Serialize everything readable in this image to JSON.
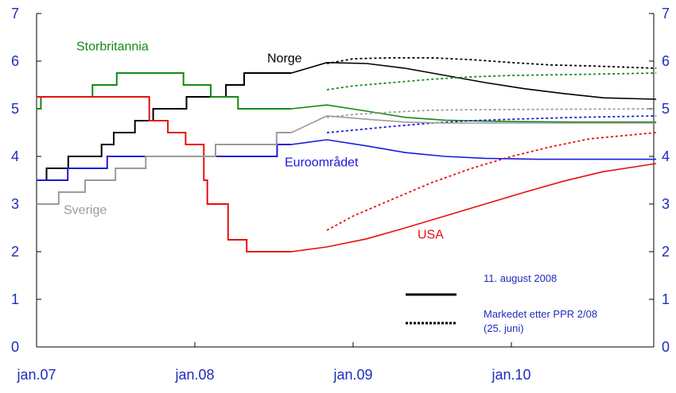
{
  "chart_data": {
    "type": "line",
    "x_ticks": [
      "jan.07",
      "jan.08",
      "jan.09",
      "jan.10"
    ],
    "ylim": [
      0,
      7
    ],
    "y_ticks": [
      "0",
      "1",
      "2",
      "3",
      "4",
      "5",
      "6",
      "7"
    ],
    "grid": false,
    "legend": {
      "position": "bottom-right",
      "solid_label": "11. august 2008",
      "dotted_label_1": "Markedet etter PPR 2/08",
      "dotted_label_2": "(25. juni)"
    },
    "series": [
      {
        "name": "Norge",
        "color": "#000000",
        "history": [
          [
            "2007-01-01",
            3.5
          ],
          [
            "2007-01-24",
            3.75
          ],
          [
            "2007-03-15",
            4.0
          ],
          [
            "2007-05-31",
            4.25
          ],
          [
            "2007-06-28",
            4.5
          ],
          [
            "2007-08-16",
            4.75
          ],
          [
            "2007-09-27",
            5.0
          ],
          [
            "2007-12-13",
            5.25
          ],
          [
            "2008-03-13",
            5.5
          ],
          [
            "2008-04-24",
            5.75
          ],
          [
            "2008-08-11",
            5.75
          ]
        ],
        "forecast": [
          [
            "2008-11-01",
            5.97
          ],
          [
            "2009-02-01",
            5.95
          ],
          [
            "2009-05-01",
            5.85
          ],
          [
            "2009-08-01",
            5.7
          ],
          [
            "2009-11-01",
            5.55
          ],
          [
            "2010-02-01",
            5.42
          ],
          [
            "2010-05-01",
            5.32
          ],
          [
            "2010-08-01",
            5.23
          ],
          [
            "2010-12-01",
            5.2
          ]
        ],
        "market": [
          [
            "2008-11-01",
            5.95
          ],
          [
            "2009-01-01",
            6.05
          ],
          [
            "2009-04-01",
            6.07
          ],
          [
            "2009-07-01",
            6.07
          ],
          [
            "2009-10-01",
            6.03
          ],
          [
            "2010-01-01",
            5.97
          ],
          [
            "2010-04-01",
            5.92
          ],
          [
            "2010-07-01",
            5.9
          ],
          [
            "2010-12-01",
            5.85
          ]
        ]
      },
      {
        "name": "Storbritannia",
        "color": "#138a14",
        "history": [
          [
            "2007-01-01",
            5.0
          ],
          [
            "2007-01-11",
            5.25
          ],
          [
            "2007-05-10",
            5.5
          ],
          [
            "2007-07-05",
            5.75
          ],
          [
            "2007-12-06",
            5.5
          ],
          [
            "2008-02-07",
            5.25
          ],
          [
            "2008-04-10",
            5.0
          ],
          [
            "2008-08-11",
            5.0
          ]
        ],
        "forecast": [
          [
            "2008-11-01",
            5.08
          ],
          [
            "2009-02-01",
            4.95
          ],
          [
            "2009-05-01",
            4.82
          ],
          [
            "2009-08-01",
            4.76
          ],
          [
            "2009-11-01",
            4.74
          ],
          [
            "2010-02-01",
            4.73
          ],
          [
            "2010-06-01",
            4.72
          ],
          [
            "2010-12-01",
            4.72
          ]
        ],
        "market": [
          [
            "2008-11-01",
            5.4
          ],
          [
            "2009-01-01",
            5.48
          ],
          [
            "2009-04-01",
            5.55
          ],
          [
            "2009-07-01",
            5.62
          ],
          [
            "2009-10-01",
            5.67
          ],
          [
            "2010-01-01",
            5.7
          ],
          [
            "2010-06-01",
            5.72
          ],
          [
            "2010-12-01",
            5.75
          ]
        ]
      },
      {
        "name": "USA",
        "color": "#e60f0f",
        "history": [
          [
            "2007-01-01",
            5.25
          ],
          [
            "2007-09-18",
            4.75
          ],
          [
            "2007-10-31",
            4.5
          ],
          [
            "2007-12-11",
            4.25
          ],
          [
            "2008-01-22",
            3.5
          ],
          [
            "2008-01-30",
            3.0
          ],
          [
            "2008-03-18",
            2.25
          ],
          [
            "2008-04-30",
            2.0
          ],
          [
            "2008-08-11",
            2.0
          ]
        ],
        "forecast": [
          [
            "2008-11-01",
            2.1
          ],
          [
            "2009-02-01",
            2.27
          ],
          [
            "2009-05-01",
            2.5
          ],
          [
            "2009-08-01",
            2.75
          ],
          [
            "2009-11-01",
            3.0
          ],
          [
            "2010-02-01",
            3.25
          ],
          [
            "2010-05-01",
            3.48
          ],
          [
            "2010-08-01",
            3.68
          ],
          [
            "2010-12-01",
            3.85
          ]
        ],
        "market": [
          [
            "2008-11-01",
            2.45
          ],
          [
            "2009-01-01",
            2.75
          ],
          [
            "2009-04-01",
            3.1
          ],
          [
            "2009-07-01",
            3.45
          ],
          [
            "2009-10-01",
            3.75
          ],
          [
            "2010-01-01",
            4.0
          ],
          [
            "2010-04-01",
            4.2
          ],
          [
            "2010-07-01",
            4.37
          ],
          [
            "2010-12-01",
            4.5
          ]
        ]
      },
      {
        "name": "Euroområdet",
        "color": "#1a1adc",
        "history": [
          [
            "2007-01-01",
            3.5
          ],
          [
            "2007-03-14",
            3.75
          ],
          [
            "2007-06-13",
            4.0
          ],
          [
            "2008-07-09",
            4.25
          ],
          [
            "2008-08-11",
            4.25
          ]
        ],
        "forecast": [
          [
            "2008-11-01",
            4.35
          ],
          [
            "2009-02-01",
            4.22
          ],
          [
            "2009-05-01",
            4.08
          ],
          [
            "2009-08-01",
            4.0
          ],
          [
            "2009-11-01",
            3.96
          ],
          [
            "2010-03-01",
            3.94
          ],
          [
            "2010-12-01",
            3.94
          ]
        ],
        "market": [
          [
            "2008-11-01",
            4.5
          ],
          [
            "2009-01-01",
            4.55
          ],
          [
            "2009-04-01",
            4.63
          ],
          [
            "2009-07-01",
            4.7
          ],
          [
            "2009-10-01",
            4.75
          ],
          [
            "2010-01-01",
            4.78
          ],
          [
            "2010-06-01",
            4.82
          ],
          [
            "2010-12-01",
            4.85
          ]
        ]
      },
      {
        "name": "Sverige",
        "color": "#9b9b9b",
        "history": [
          [
            "2007-01-01",
            3.0
          ],
          [
            "2007-02-21",
            3.25
          ],
          [
            "2007-04-23",
            3.5
          ],
          [
            "2007-07-02",
            3.75
          ],
          [
            "2007-09-10",
            4.0
          ],
          [
            "2008-02-18",
            4.25
          ],
          [
            "2008-07-08",
            4.5
          ],
          [
            "2008-08-11",
            4.5
          ]
        ],
        "forecast": [
          [
            "2008-11-01",
            4.85
          ],
          [
            "2009-02-01",
            4.78
          ],
          [
            "2009-05-01",
            4.72
          ],
          [
            "2009-08-01",
            4.7
          ],
          [
            "2009-12-01",
            4.7
          ],
          [
            "2010-12-01",
            4.7
          ]
        ],
        "market": [
          [
            "2008-11-01",
            4.82
          ],
          [
            "2009-01-01",
            4.88
          ],
          [
            "2009-04-01",
            4.93
          ],
          [
            "2009-07-01",
            4.97
          ],
          [
            "2009-10-01",
            4.98
          ],
          [
            "2010-12-01",
            5.0
          ]
        ]
      }
    ]
  }
}
